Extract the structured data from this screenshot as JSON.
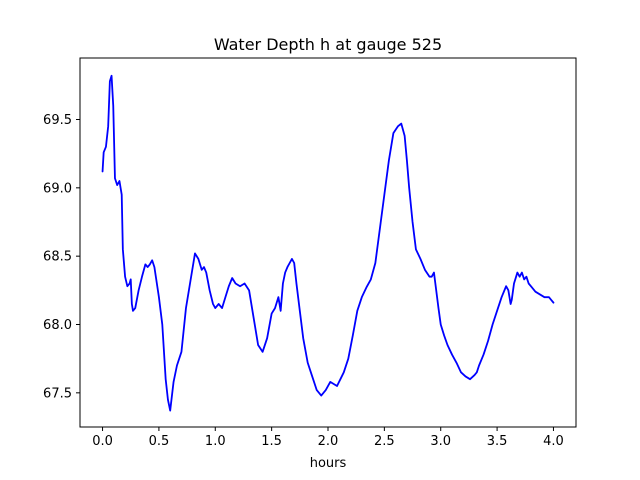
{
  "chart_data": {
    "type": "line",
    "title": "Water Depth h at gauge 525",
    "xlabel": "hours",
    "ylabel": "",
    "xlim": [
      -0.2,
      4.2
    ],
    "ylim": [
      67.25,
      69.95
    ],
    "xticks": [
      0.0,
      0.5,
      1.0,
      1.5,
      2.0,
      2.5,
      3.0,
      3.5,
      4.0
    ],
    "xtick_labels": [
      "0.0",
      "0.5",
      "1.0",
      "1.5",
      "2.0",
      "2.5",
      "3.0",
      "3.5",
      "4.0"
    ],
    "yticks": [
      67.5,
      68.0,
      68.5,
      69.0,
      69.5
    ],
    "ytick_labels": [
      "67.5",
      "68.0",
      "68.5",
      "69.0",
      "69.5"
    ],
    "grid": false,
    "series": [
      {
        "color": "#0000ff",
        "x": [
          0.0,
          0.01,
          0.03,
          0.05,
          0.065,
          0.08,
          0.095,
          0.11,
          0.13,
          0.15,
          0.17,
          0.18,
          0.2,
          0.22,
          0.24,
          0.25,
          0.26,
          0.27,
          0.29,
          0.32,
          0.35,
          0.38,
          0.4,
          0.42,
          0.44,
          0.46,
          0.5,
          0.53,
          0.56,
          0.58,
          0.6,
          0.63,
          0.66,
          0.7,
          0.74,
          0.78,
          0.82,
          0.85,
          0.88,
          0.9,
          0.92,
          0.95,
          0.98,
          1.0,
          1.03,
          1.06,
          1.09,
          1.12,
          1.15,
          1.18,
          1.22,
          1.26,
          1.3,
          1.34,
          1.38,
          1.42,
          1.46,
          1.5,
          1.53,
          1.56,
          1.58,
          1.6,
          1.62,
          1.64,
          1.66,
          1.68,
          1.7,
          1.72,
          1.75,
          1.78,
          1.82,
          1.86,
          1.9,
          1.94,
          1.98,
          2.02,
          2.06,
          2.08,
          2.11,
          2.14,
          2.18,
          2.22,
          2.26,
          2.3,
          2.34,
          2.38,
          2.42,
          2.46,
          2.5,
          2.54,
          2.58,
          2.62,
          2.65,
          2.68,
          2.7,
          2.72,
          2.75,
          2.78,
          2.82,
          2.86,
          2.9,
          2.92,
          2.94,
          2.96,
          2.98,
          3.0,
          3.03,
          3.06,
          3.1,
          3.14,
          3.18,
          3.22,
          3.26,
          3.3,
          3.32,
          3.34,
          3.38,
          3.42,
          3.46,
          3.5,
          3.54,
          3.58,
          3.6,
          3.62,
          3.63,
          3.65,
          3.68,
          3.7,
          3.72,
          3.74,
          3.76,
          3.78,
          3.8,
          3.84,
          3.88,
          3.92,
          3.96,
          3.98,
          4.0
        ],
        "y": [
          69.12,
          69.26,
          69.3,
          69.45,
          69.78,
          69.82,
          69.6,
          69.07,
          69.02,
          69.05,
          68.95,
          68.55,
          68.35,
          68.28,
          68.3,
          68.33,
          68.15,
          68.1,
          68.12,
          68.25,
          68.35,
          68.44,
          68.42,
          68.44,
          68.47,
          68.42,
          68.2,
          68.0,
          67.6,
          67.45,
          67.37,
          67.58,
          67.7,
          67.8,
          68.12,
          68.32,
          68.52,
          68.48,
          68.4,
          68.42,
          68.38,
          68.25,
          68.15,
          68.12,
          68.15,
          68.12,
          68.2,
          68.28,
          68.34,
          68.3,
          68.28,
          68.3,
          68.25,
          68.05,
          67.85,
          67.8,
          67.9,
          68.08,
          68.12,
          68.2,
          68.1,
          68.3,
          68.38,
          68.42,
          68.45,
          68.48,
          68.45,
          68.3,
          68.1,
          67.9,
          67.72,
          67.62,
          67.52,
          67.48,
          67.52,
          67.58,
          67.56,
          67.55,
          67.6,
          67.65,
          67.75,
          67.92,
          68.1,
          68.2,
          68.27,
          68.33,
          68.45,
          68.7,
          68.95,
          69.2,
          69.4,
          69.45,
          69.47,
          69.38,
          69.2,
          69.0,
          68.75,
          68.55,
          68.48,
          68.4,
          68.35,
          68.35,
          68.38,
          68.25,
          68.12,
          68.0,
          67.92,
          67.85,
          67.78,
          67.72,
          67.65,
          67.62,
          67.6,
          67.63,
          67.65,
          67.7,
          67.78,
          67.88,
          68.0,
          68.1,
          68.2,
          68.28,
          68.25,
          68.15,
          68.18,
          68.3,
          68.38,
          68.35,
          68.38,
          68.33,
          68.35,
          68.3,
          68.28,
          68.24,
          68.22,
          68.2,
          68.2,
          68.18,
          68.16
        ]
      }
    ]
  }
}
